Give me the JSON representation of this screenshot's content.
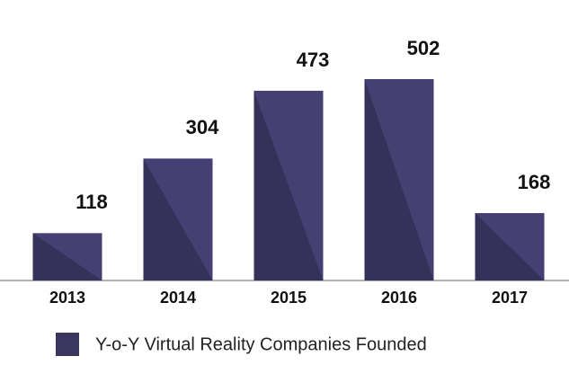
{
  "chart_data": {
    "type": "bar",
    "categories": [
      "2013",
      "2014",
      "2015",
      "2016",
      "2017"
    ],
    "series": [
      {
        "name": "Y-o-Y Virtual Reality Companies Founded",
        "color": "#3b3660",
        "values": [
          118,
          304,
          473,
          502,
          168
        ]
      }
    ]
  }
}
